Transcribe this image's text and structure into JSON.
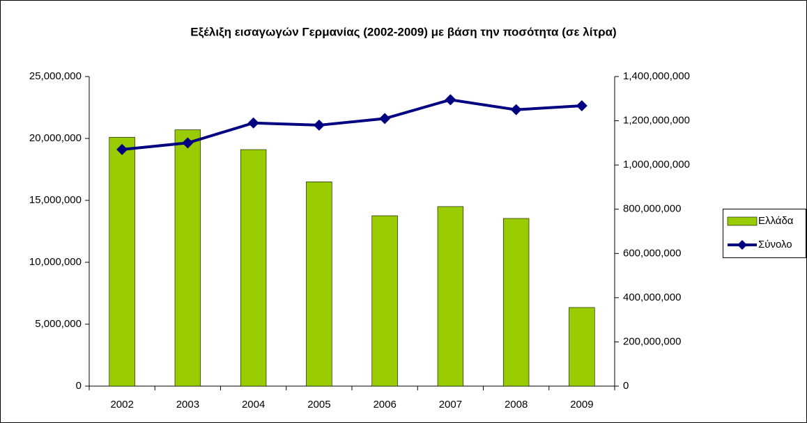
{
  "chart_data": {
    "type": "bar-line",
    "title": "Εξέλιξη εισαγωγών Γερμανίας (2002-2009) με βάση την ποσότητα (σε λίτρα)",
    "categories": [
      "2002",
      "2003",
      "2004",
      "2005",
      "2006",
      "2007",
      "2008",
      "2009"
    ],
    "series": [
      {
        "name": "Ελλάδα",
        "type": "bar",
        "color": "#99cc00",
        "values": [
          20100000,
          20700000,
          19100000,
          16500000,
          13760000,
          14500000,
          13540000,
          6350000
        ]
      },
      {
        "name": "Σύνολο",
        "type": "line",
        "axis": "y2",
        "color": "#000080",
        "values": [
          1070000000,
          1100000000,
          1190000000,
          1180000000,
          1210000000,
          1295000000,
          1250000000,
          1268000000
        ]
      }
    ],
    "ylim": [
      0,
      25000000
    ],
    "yticks": [
      0,
      {
        "value": 5000000,
        "label": "5,000,000"
      },
      {
        "value": 10000000,
        "label": "10,000,000"
      },
      {
        "value": 15000000,
        "label": "15,000,000"
      },
      {
        "value": 20000000,
        "label": "20,000,000"
      },
      {
        "value": 25000000,
        "label": "25,000,000"
      }
    ],
    "y2lim": [
      0,
      1400000000
    ],
    "y2ticks": [
      0,
      {
        "value": 200000000,
        "label": "200,000,000"
      },
      {
        "value": 400000000,
        "label": "400,000,000"
      },
      {
        "value": 600000000,
        "label": "600,000,000"
      },
      {
        "value": 800000000,
        "label": "800,000,000"
      },
      {
        "value": 1000000000,
        "label": "1,000,000,000"
      },
      {
        "value": 1200000000,
        "label": "1,200,000,000"
      },
      {
        "value": 1400000000,
        "label": "1,400,000,000"
      }
    ],
    "legend": "right"
  }
}
